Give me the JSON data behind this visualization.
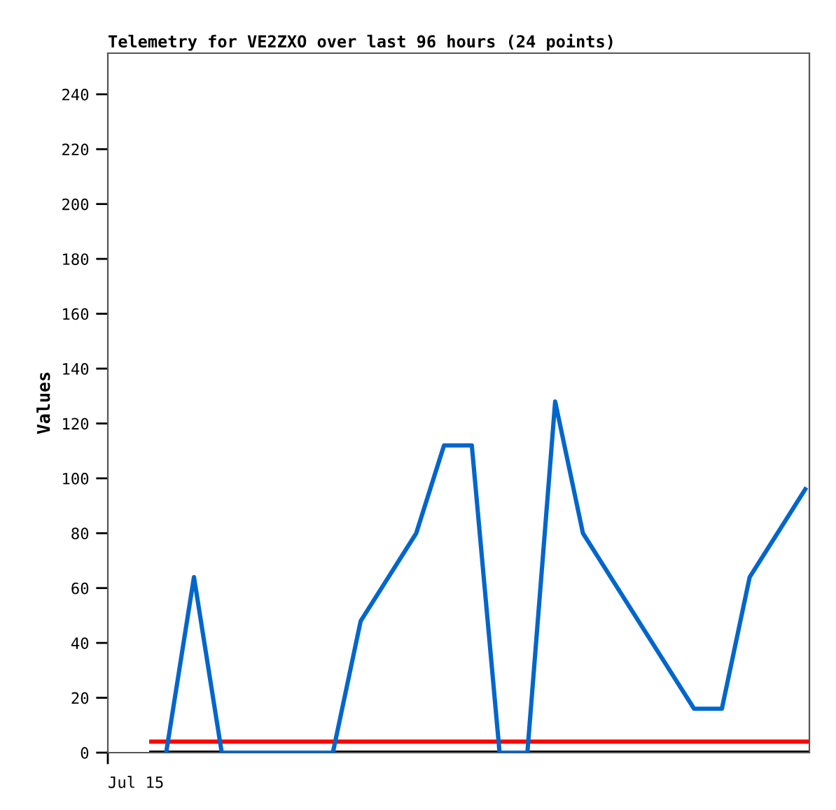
{
  "chart_data": {
    "type": "line",
    "title": "Telemetry for VE2ZXO over last 96 hours (24 points)",
    "ylabel": "Values",
    "annotations": [
      "Jul 15"
    ],
    "categories": [
      null,
      null,
      null,
      null,
      null,
      null,
      null,
      null,
      null,
      null,
      null,
      null,
      null,
      null,
      null,
      null,
      null,
      null,
      null,
      null,
      null,
      null,
      null,
      null
    ],
    "ylim": [
      0,
      255
    ],
    "yticks": [
      0,
      20,
      40,
      60,
      80,
      100,
      120,
      140,
      160,
      180,
      200,
      220,
      240
    ],
    "grid": false,
    "legend": false,
    "marker": "none",
    "line_style": "solid",
    "ref_lines": [
      {
        "axis": "y",
        "value": 0,
        "color": "#000000"
      },
      {
        "axis": "y",
        "value": 4,
        "color": "#ff0000"
      }
    ],
    "series": [
      {
        "color": "#0066cc",
        "values": [
          0,
          64,
          0,
          0,
          0,
          0,
          0,
          48,
          64,
          80,
          112,
          112,
          0,
          0,
          128,
          80,
          64,
          48,
          32,
          16,
          16,
          64,
          80,
          96
        ]
      }
    ]
  }
}
